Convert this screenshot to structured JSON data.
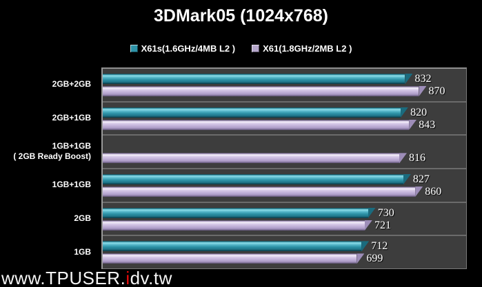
{
  "title": "3DMark05 (1024x768)",
  "legend": [
    {
      "label": "X61s(1.6GHz/4MB L2 )",
      "color": "#2e93a8"
    },
    {
      "label": "X61(1.8GHz/2MB L2 )",
      "color": "#b5a6cb"
    }
  ],
  "watermark": {
    "prefix": "www.TPUSER.",
    "accent": "i",
    "suffix": "dv.tw",
    "accent_color": "#ea0b0b"
  },
  "colors": {
    "background": "#000000",
    "plot_background": "#3d3d3d",
    "series_teal": "#2e93a8",
    "series_purple": "#c3b3da",
    "text": "#ffffff"
  },
  "chart_data": {
    "type": "bar",
    "orientation": "horizontal",
    "title": "3DMark05 (1024x768)",
    "categories": [
      "2GB+2GB",
      "2GB+1GB",
      "1GB+1GB\n( 2GB Ready Boost)",
      "1GB+1GB",
      "2GB",
      "1GB"
    ],
    "series": [
      {
        "name": "X61s(1.6GHz/4MB L2 )",
        "color": "#2e93a8",
        "values": [
          832,
          820,
          null,
          827,
          730,
          712
        ]
      },
      {
        "name": "X61(1.8GHz/2MB L2 )",
        "color": "#c3b3da",
        "values": [
          870,
          843,
          816,
          860,
          721,
          699
        ]
      }
    ],
    "xlim": [
      0,
      1000
    ],
    "xlabel": "",
    "ylabel": "",
    "grid": false,
    "value_labels": true,
    "legend_position": "top"
  }
}
